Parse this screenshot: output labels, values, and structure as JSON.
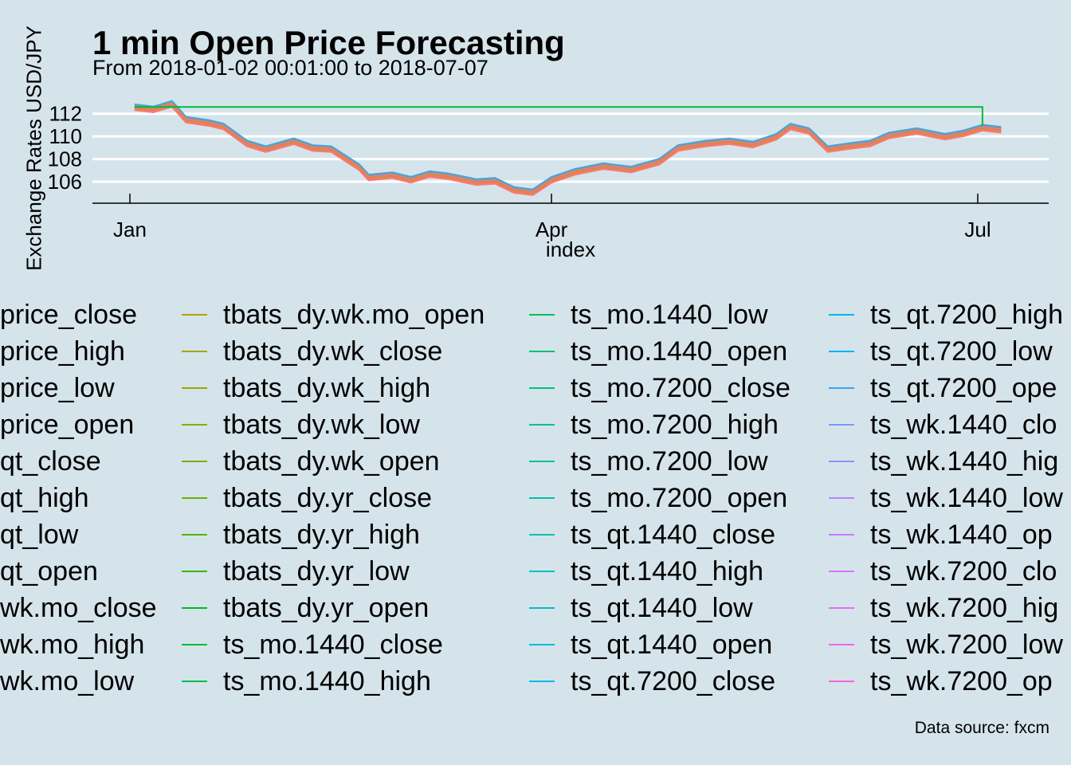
{
  "chart_data": {
    "type": "line",
    "title": "1 min Open Price Forecasting",
    "subtitle": "From 2018-01-02 00:01:00 to 2018-07-07",
    "xlabel": "index",
    "ylabel": "Exchange Rates USD/JPY",
    "caption": "Data source: fxcm",
    "xlim": [
      "2018-01-02",
      "2018-07-07"
    ],
    "ylim": [
      104.0,
      113.0
    ],
    "x_ticks": [
      {
        "date": "2018-01-01",
        "label": "Jan"
      },
      {
        "date": "2018-04-01",
        "label": "Apr"
      },
      {
        "date": "2018-07-01",
        "label": "Jul"
      }
    ],
    "y_ticks": [
      106,
      108,
      110,
      112
    ],
    "grid": "horizontal major lines",
    "legend_position": "bottom",
    "price_path": [
      [
        "2018-01-02",
        112.6
      ],
      [
        "2018-01-06",
        112.4
      ],
      [
        "2018-01-10",
        112.9
      ],
      [
        "2018-01-13",
        111.5
      ],
      [
        "2018-01-18",
        111.2
      ],
      [
        "2018-01-21",
        110.9
      ],
      [
        "2018-01-26",
        109.4
      ],
      [
        "2018-01-30",
        108.9
      ],
      [
        "2018-02-05",
        109.6
      ],
      [
        "2018-02-09",
        109.0
      ],
      [
        "2018-02-13",
        108.9
      ],
      [
        "2018-02-19",
        107.3
      ],
      [
        "2018-02-21",
        106.4
      ],
      [
        "2018-02-26",
        106.6
      ],
      [
        "2018-03-02",
        106.2
      ],
      [
        "2018-03-06",
        106.7
      ],
      [
        "2018-03-10",
        106.5
      ],
      [
        "2018-03-16",
        106.0
      ],
      [
        "2018-03-20",
        106.1
      ],
      [
        "2018-03-24",
        105.3
      ],
      [
        "2018-03-28",
        105.1
      ],
      [
        "2018-04-01",
        106.2
      ],
      [
        "2018-04-06",
        106.9
      ],
      [
        "2018-04-12",
        107.4
      ],
      [
        "2018-04-18",
        107.1
      ],
      [
        "2018-04-24",
        107.8
      ],
      [
        "2018-04-28",
        109.0
      ],
      [
        "2018-05-04",
        109.4
      ],
      [
        "2018-05-09",
        109.6
      ],
      [
        "2018-05-14",
        109.3
      ],
      [
        "2018-05-19",
        110.0
      ],
      [
        "2018-05-22",
        110.9
      ],
      [
        "2018-05-26",
        110.5
      ],
      [
        "2018-05-30",
        108.9
      ],
      [
        "2018-06-04",
        109.2
      ],
      [
        "2018-06-08",
        109.4
      ],
      [
        "2018-06-12",
        110.1
      ],
      [
        "2018-06-18",
        110.5
      ],
      [
        "2018-06-24",
        110.0
      ],
      [
        "2018-06-28",
        110.3
      ],
      [
        "2018-07-02",
        110.8
      ],
      [
        "2018-07-06",
        110.6
      ]
    ],
    "flat_forecast_path": [
      [
        "2018-01-02",
        112.6
      ],
      [
        "2018-07-02",
        112.6
      ],
      [
        "2018-07-02",
        110.9
      ]
    ],
    "series_names": [
      "price_close",
      "price_high",
      "price_low",
      "price_open",
      "qt_close",
      "qt_high",
      "qt_low",
      "qt_open",
      "wk.mo_close",
      "wk.mo_high",
      "wk.mo_low",
      "tbats_dy.wk.mo_open",
      "tbats_dy.wk_close",
      "tbats_dy.wk_high",
      "tbats_dy.wk_low",
      "tbats_dy.wk_open",
      "tbats_dy.yr_close",
      "tbats_dy.yr_high",
      "tbats_dy.yr_low",
      "tbats_dy.yr_open",
      "ts_mo.1440_close",
      "ts_mo.1440_high",
      "ts_mo.1440_low",
      "ts_mo.1440_open",
      "ts_mo.7200_close",
      "ts_mo.7200_high",
      "ts_mo.7200_low",
      "ts_mo.7200_open",
      "ts_qt.1440_close",
      "ts_qt.1440_high",
      "ts_qt.1440_low",
      "ts_qt.1440_open",
      "ts_qt.7200_close",
      "ts_qt.7200_high",
      "ts_qt.7200_low",
      "ts_qt.7200_ope",
      "ts_wk.1440_clo",
      "ts_wk.1440_hig",
      "ts_wk.1440_low",
      "ts_wk.1440_op",
      "ts_wk.7200_clo",
      "ts_wk.7200_hig",
      "ts_wk.7200_low",
      "ts_wk.7200_op"
    ],
    "legend_layout": {
      "columns": [
        {
          "left": -52,
          "rows": 11,
          "first": 0
        },
        {
          "left": 228,
          "rows": 11,
          "first": 11
        },
        {
          "left": 664,
          "rows": 11,
          "first": 22
        },
        {
          "left": 1040,
          "rows": 11,
          "first": 33
        }
      ]
    },
    "series_colors": [
      "#f8766d",
      "#f3794c",
      "#ea8331",
      "#e38900",
      "#d89000",
      "#cc9600",
      "#bf9c00",
      "#b09c00",
      "#a3a500",
      "#9aa600",
      "#8fa800",
      "#b2a100",
      "#a5a500",
      "#99a800",
      "#8cab00",
      "#7cae00",
      "#6bb100",
      "#53b400",
      "#39b600",
      "#00b81f",
      "#00ba38",
      "#00bb4e",
      "#00bd5f",
      "#00be6f",
      "#00bf7d",
      "#00c08b",
      "#00c199",
      "#00c1a6",
      "#00c0b3",
      "#00bfc0",
      "#00bdcc",
      "#00bbd8",
      "#00b8e4",
      "#00b4ef",
      "#00b0f6",
      "#35a2ff",
      "#7c96ff",
      "#9b8cff",
      "#b385ff",
      "#c77cff",
      "#d874fd",
      "#e76bf3",
      "#f265e7",
      "#fb61d7"
    ]
  }
}
